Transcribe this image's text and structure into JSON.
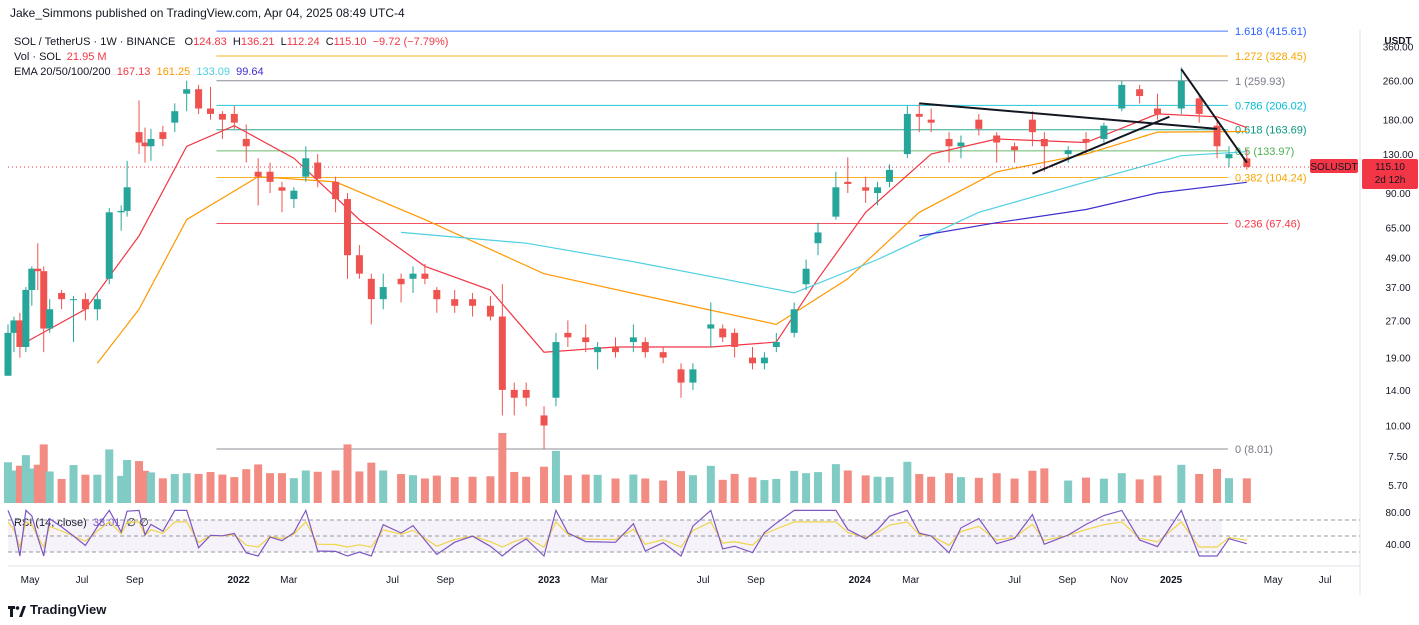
{
  "publish_line": "Jake_Simmons published on TradingView.com, Apr 04, 2025 08:49 UTC-4",
  "legend": {
    "symbol": "SOL / TetherUS · 1W · BINANCE",
    "o_label": "O",
    "o": "124.83",
    "h_label": "H",
    "h": "136.21",
    "l_label": "L",
    "l": "112.24",
    "c_label": "C",
    "c": "115.10",
    "change": "−9.72 (−7.79%)",
    "vol_label": "Vol · SOL",
    "vol": "21.95 M",
    "ema_label": "EMA 20/50/100/200",
    "ema20": "167.13",
    "ema50": "161.25",
    "ema100": "133.09",
    "ema200": "99.64"
  },
  "rsi": {
    "label": "RSI (14, close)",
    "value": "38.01",
    "extra": "∅ ∅"
  },
  "logo_text": "TradingView",
  "colors": {
    "up": "#26a69a",
    "down": "#ef5350",
    "vol_up": "#80cbc4",
    "vol_down": "#f28b82",
    "ema20": "#f23645",
    "ema50": "#ff9800",
    "ema100": "#4dd0e1",
    "ema200": "#3f2fd0",
    "rsi": "#7e57c2",
    "rsi_ma": "#f0d44a",
    "price_tag": "#f23645"
  },
  "chart_data": {
    "type": "candlestick",
    "currency_label": "USDT",
    "scale": "log",
    "y_ticks": [
      360,
      260,
      180,
      130,
      90,
      65,
      49,
      37,
      27,
      19,
      14,
      10,
      7.5,
      5.7
    ],
    "y_tick_labels": [
      "360.00",
      "260.00",
      "180.00",
      "130.00",
      "90.00",
      "65.00",
      "49.00",
      "37.00",
      "27.00",
      "19.00",
      "14.00",
      "10.00",
      "7.50",
      "5.70"
    ],
    "ylim": [
      4.5,
      420
    ],
    "x_labels": [
      "May",
      "Jul",
      "Sep",
      "2022",
      "Mar",
      "Jul",
      "Sep",
      "2023",
      "Mar",
      "Jul",
      "Sep",
      "2024",
      "Mar",
      "Jul",
      "Sep",
      "Nov",
      "2025",
      "May",
      "Jul"
    ],
    "x_start": "2021-04-05",
    "x_end": "2025-08-11",
    "last_price": {
      "symbol": "SOLUSDT",
      "value": "115.10",
      "countdown": "2d 12h"
    },
    "fib_levels": [
      {
        "label": "1.618 (415.61)",
        "value": 415.61,
        "color": "#2962ff"
      },
      {
        "label": "1.272 (328.45)",
        "value": 328.45,
        "color": "#f7a600"
      },
      {
        "label": "1 (259.93)",
        "value": 259.93,
        "color": "#787b86"
      },
      {
        "label": "0.786 (206.02)",
        "value": 206.02,
        "color": "#00bcd4"
      },
      {
        "label": "0.618 (163.69)",
        "value": 163.69,
        "color": "#089981"
      },
      {
        "label": "0.5 (133.97)",
        "value": 133.97,
        "color": "#4caf50"
      },
      {
        "label": "0.382 (104.24)",
        "value": 104.24,
        "color": "#f7a600"
      },
      {
        "label": "0.236 (67.46)",
        "value": 67.46,
        "color": "#f23645"
      },
      {
        "label": "0 (8.01)",
        "value": 8.01,
        "color": "#787b86"
      }
    ],
    "fib_start": "2021-12-06",
    "trendlines": [
      {
        "from": {
          "x": "2024-03-11",
          "y": 210
        },
        "to": {
          "x": "2025-02-24",
          "y": 165
        }
      },
      {
        "from": {
          "x": "2024-07-22",
          "y": 108
        },
        "to": {
          "x": "2024-12-30",
          "y": 185
        }
      },
      {
        "from": {
          "x": "2025-01-13",
          "y": 290
        },
        "to": {
          "x": "2025-03-31",
          "y": 120
        }
      }
    ],
    "candles": [
      [
        "2021-04-05",
        16,
        26,
        16,
        24
      ],
      [
        "2021-04-12",
        24,
        28,
        20,
        27
      ],
      [
        "2021-04-19",
        27,
        29,
        19,
        21
      ],
      [
        "2021-04-26",
        21,
        37,
        20,
        36
      ],
      [
        "2021-05-03",
        36,
        45,
        31,
        44
      ],
      [
        "2021-05-10",
        44,
        56,
        36,
        43
      ],
      [
        "2021-05-17",
        43,
        45,
        20,
        25
      ],
      [
        "2021-05-24",
        25,
        33,
        24,
        30
      ],
      [
        "2021-06-07",
        35,
        36,
        30,
        33
      ],
      [
        "2021-06-21",
        33,
        34,
        22,
        33
      ],
      [
        "2021-07-05",
        33,
        35,
        27,
        30
      ],
      [
        "2021-07-19",
        30,
        35,
        27,
        33
      ],
      [
        "2021-08-02",
        40,
        78,
        38,
        75
      ],
      [
        "2021-08-16",
        75,
        80,
        63,
        76
      ],
      [
        "2021-08-23",
        76,
        122,
        72,
        95
      ],
      [
        "2021-09-06",
        160,
        216,
        130,
        145
      ],
      [
        "2021-09-13",
        145,
        167,
        120,
        140
      ],
      [
        "2021-09-20",
        140,
        165,
        122,
        150
      ],
      [
        "2021-10-04",
        160,
        170,
        140,
        150
      ],
      [
        "2021-10-18",
        175,
        210,
        160,
        195
      ],
      [
        "2021-11-01",
        230,
        260,
        195,
        240
      ],
      [
        "2021-11-15",
        240,
        250,
        190,
        200
      ],
      [
        "2021-11-29",
        200,
        245,
        180,
        190
      ],
      [
        "2021-12-13",
        190,
        195,
        150,
        180
      ],
      [
        "2021-12-27",
        190,
        205,
        165,
        175
      ],
      [
        "2022-01-10",
        150,
        172,
        120,
        140
      ],
      [
        "2022-01-24",
        110,
        125,
        80,
        105
      ],
      [
        "2022-02-07",
        110,
        120,
        90,
        100
      ],
      [
        "2022-02-21",
        95,
        100,
        75,
        92
      ],
      [
        "2022-03-07",
        85,
        95,
        78,
        92
      ],
      [
        "2022-03-21",
        105,
        140,
        100,
        125
      ],
      [
        "2022-04-04",
        120,
        130,
        95,
        103
      ],
      [
        "2022-04-25",
        100,
        105,
        75,
        85
      ],
      [
        "2022-05-09",
        85,
        90,
        40,
        50
      ],
      [
        "2022-05-23",
        50,
        55,
        40,
        42
      ],
      [
        "2022-06-06",
        40,
        42,
        26,
        33
      ],
      [
        "2022-06-20",
        33,
        42,
        30,
        37
      ],
      [
        "2022-07-11",
        40,
        42,
        32,
        38
      ],
      [
        "2022-07-25",
        40,
        45,
        35,
        42
      ],
      [
        "2022-08-08",
        42,
        46,
        38,
        40
      ],
      [
        "2022-08-22",
        36,
        37,
        29,
        33
      ],
      [
        "2022-09-12",
        33,
        36,
        29,
        31
      ],
      [
        "2022-10-03",
        33,
        35,
        28,
        31
      ],
      [
        "2022-10-24",
        31,
        34,
        27,
        28
      ],
      [
        "2022-11-07",
        28,
        38,
        11,
        14
      ],
      [
        "2022-11-21",
        14,
        15,
        11,
        13
      ],
      [
        "2022-12-05",
        14,
        15,
        12,
        13
      ],
      [
        "2022-12-26",
        11,
        12,
        8,
        10
      ],
      [
        "2023-01-09",
        13,
        24,
        12,
        22
      ],
      [
        "2023-01-23",
        24,
        27,
        21,
        23
      ],
      [
        "2023-02-13",
        23,
        26,
        20,
        22
      ],
      [
        "2023-02-27",
        20,
        22,
        17,
        21
      ],
      [
        "2023-03-20",
        21,
        23,
        19,
        20
      ],
      [
        "2023-04-10",
        22,
        26,
        20,
        23
      ],
      [
        "2023-04-24",
        22,
        23,
        19,
        20
      ],
      [
        "2023-05-15",
        20,
        21,
        18,
        19
      ],
      [
        "2023-06-05",
        17,
        18,
        13,
        15
      ],
      [
        "2023-06-19",
        15,
        18,
        14,
        17
      ],
      [
        "2023-07-10",
        25,
        32,
        21,
        26
      ],
      [
        "2023-07-24",
        25,
        26,
        22,
        23
      ],
      [
        "2023-08-07",
        24,
        25,
        19,
        21
      ],
      [
        "2023-08-28",
        19,
        21,
        17,
        18
      ],
      [
        "2023-09-11",
        18,
        20,
        17,
        19
      ],
      [
        "2023-09-25",
        21,
        24,
        20,
        22
      ],
      [
        "2023-10-16",
        24,
        32,
        23,
        30
      ],
      [
        "2023-10-30",
        38,
        48,
        36,
        44
      ],
      [
        "2023-11-13",
        56,
        68,
        50,
        62
      ],
      [
        "2023-12-04",
        72,
        110,
        70,
        95
      ],
      [
        "2023-12-18",
        100,
        126,
        90,
        98
      ],
      [
        "2024-01-08",
        95,
        105,
        82,
        92
      ],
      [
        "2024-01-22",
        90,
        100,
        80,
        95
      ],
      [
        "2024-02-05",
        100,
        118,
        95,
        112
      ],
      [
        "2024-02-26",
        130,
        205,
        125,
        190
      ],
      [
        "2024-03-11",
        190,
        210,
        160,
        185
      ],
      [
        "2024-03-25",
        180,
        200,
        160,
        175
      ],
      [
        "2024-04-15",
        150,
        160,
        120,
        140
      ],
      [
        "2024-04-29",
        140,
        155,
        125,
        145
      ],
      [
        "2024-05-20",
        180,
        190,
        155,
        165
      ],
      [
        "2024-06-10",
        155,
        160,
        120,
        145
      ],
      [
        "2024-07-01",
        140,
        145,
        120,
        135
      ],
      [
        "2024-07-22",
        180,
        195,
        140,
        160
      ],
      [
        "2024-08-05",
        150,
        160,
        110,
        140
      ],
      [
        "2024-09-02",
        130,
        140,
        120,
        135
      ],
      [
        "2024-09-23",
        150,
        160,
        130,
        145
      ],
      [
        "2024-10-14",
        150,
        175,
        145,
        170
      ],
      [
        "2024-11-04",
        200,
        260,
        195,
        250
      ],
      [
        "2024-11-25",
        240,
        250,
        210,
        225
      ],
      [
        "2024-12-16",
        200,
        230,
        180,
        190
      ],
      [
        "2025-01-13",
        200,
        295,
        190,
        260
      ],
      [
        "2025-02-03",
        220,
        230,
        175,
        190
      ],
      [
        "2025-02-24",
        170,
        180,
        125,
        140
      ],
      [
        "2025-03-10",
        125,
        140,
        115,
        130
      ],
      [
        "2025-03-31",
        124.83,
        136.21,
        112.24,
        115.1
      ]
    ],
    "ema_lines": {
      "ema20": [
        [
          "2021-04-26",
          22
        ],
        [
          "2021-07-05",
          30
        ],
        [
          "2021-09-06",
          60
        ],
        [
          "2021-11-01",
          140
        ],
        [
          "2021-12-27",
          170
        ],
        [
          "2022-03-07",
          125
        ],
        [
          "2022-05-23",
          70
        ],
        [
          "2022-08-08",
          45
        ],
        [
          "2022-10-24",
          36
        ],
        [
          "2022-12-26",
          20
        ],
        [
          "2023-03-20",
          21
        ],
        [
          "2023-07-10",
          21
        ],
        [
          "2023-09-25",
          22
        ],
        [
          "2023-11-13",
          40
        ],
        [
          "2024-01-08",
          75
        ],
        [
          "2024-03-25",
          130
        ],
        [
          "2024-06-10",
          150
        ],
        [
          "2024-09-23",
          145
        ],
        [
          "2024-12-16",
          190
        ],
        [
          "2025-02-24",
          185
        ],
        [
          "2025-03-31",
          167
        ]
      ],
      "ema50": [
        [
          "2021-07-19",
          18
        ],
        [
          "2021-09-06",
          30
        ],
        [
          "2021-11-01",
          70
        ],
        [
          "2022-01-24",
          105
        ],
        [
          "2022-04-25",
          100
        ],
        [
          "2022-08-08",
          70
        ],
        [
          "2022-12-26",
          42
        ],
        [
          "2023-04-24",
          34
        ],
        [
          "2023-09-25",
          26
        ],
        [
          "2023-12-18",
          40
        ],
        [
          "2024-03-11",
          75
        ],
        [
          "2024-06-10",
          110
        ],
        [
          "2024-09-23",
          130
        ],
        [
          "2024-12-16",
          160
        ],
        [
          "2025-03-31",
          161
        ]
      ],
      "ema100": [
        [
          "2022-07-11",
          62
        ],
        [
          "2022-12-05",
          56
        ],
        [
          "2023-04-10",
          47
        ],
        [
          "2023-07-24",
          40
        ],
        [
          "2023-10-16",
          35
        ],
        [
          "2024-01-22",
          48
        ],
        [
          "2024-05-20",
          75
        ],
        [
          "2024-09-23",
          100
        ],
        [
          "2025-01-13",
          128
        ],
        [
          "2025-03-31",
          133
        ]
      ],
      "ema200": [
        [
          "2024-03-11",
          60
        ],
        [
          "2024-06-10",
          68
        ],
        [
          "2024-09-23",
          77
        ],
        [
          "2024-12-16",
          90
        ],
        [
          "2025-03-31",
          99.6
        ]
      ]
    },
    "volume_scale_note": "relative",
    "rsi_levels": [
      70,
      50,
      30
    ],
    "rsi_tick_labels": [
      "80.00",
      "40.00"
    ]
  }
}
